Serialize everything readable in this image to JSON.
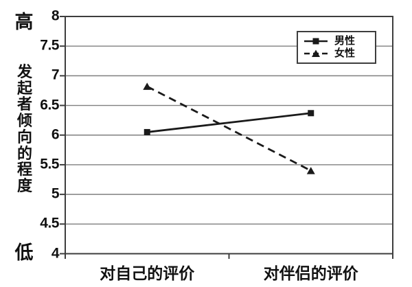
{
  "chart_data": {
    "type": "line",
    "title": "",
    "categories": [
      "对自己的评价",
      "对伴侣的评价"
    ],
    "series": [
      {
        "name": "男性",
        "values": [
          6.05,
          6.37
        ],
        "line_style": "solid",
        "marker": "square"
      },
      {
        "name": "女性",
        "values": [
          6.82,
          5.4
        ],
        "line_style": "dashed",
        "marker": "triangle"
      }
    ],
    "ylim": [
      4,
      8
    ],
    "yticks": [
      8,
      7.5,
      7,
      6.5,
      6,
      5.5,
      5,
      4.5,
      4
    ],
    "ylabel": "发起者倾向的程度",
    "ylabel_top": "高",
    "ylabel_bottom": "低",
    "xlabel": "",
    "grid": true,
    "legend_position": "top-right",
    "colors": {
      "series": "#1a1a1a",
      "grid": "#7f7f7f",
      "frame": "#3d3d3d",
      "text": "#111111",
      "background": "#ffffff"
    }
  }
}
